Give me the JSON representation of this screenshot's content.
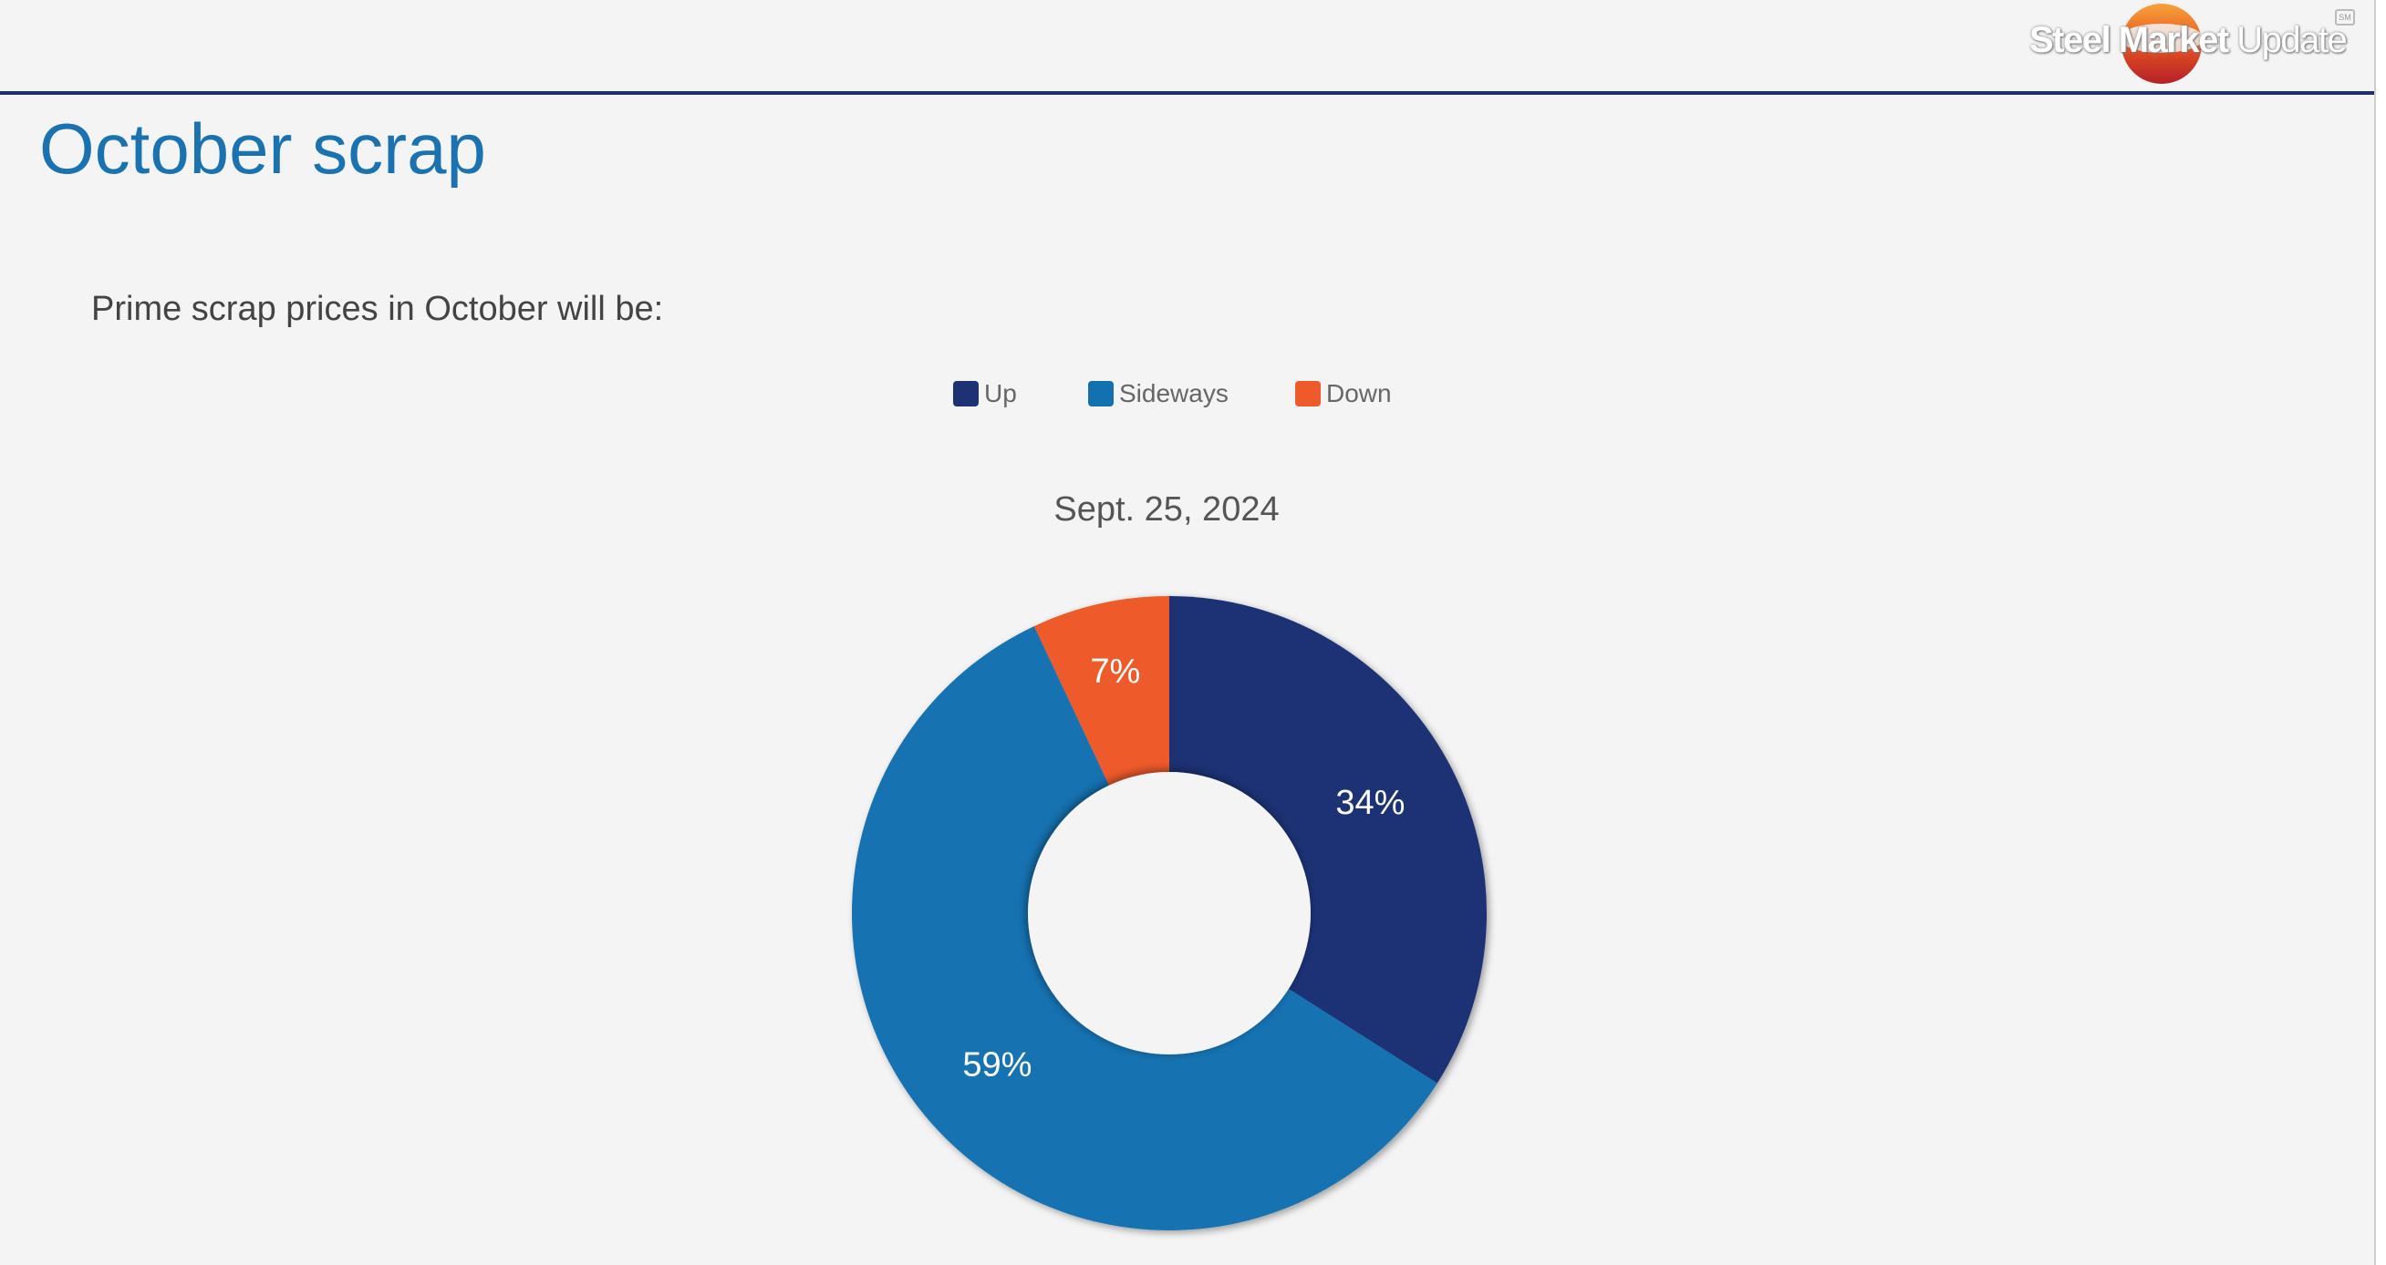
{
  "logo": {
    "text_bold": "Steel Market",
    "text_light": "Update",
    "mark": "SM"
  },
  "slide": {
    "title": "October scrap",
    "question": "Prime scrap prices in October will be:"
  },
  "chart_data": {
    "type": "pie",
    "subtype": "donut",
    "title": "Sept. 25, 2024",
    "legend_position": "top",
    "categories": [
      "Up",
      "Sideways",
      "Down"
    ],
    "values": [
      34,
      59,
      7
    ],
    "data_labels": [
      "34%",
      "59%",
      "7%"
    ],
    "colors": [
      "#1f3175",
      "#1272b1",
      "#ee5a2a"
    ],
    "start_angle": "12 o'clock",
    "direction": "clockwise"
  },
  "colors": {
    "background": "#f4f4f4",
    "title": "#1a72b0",
    "header_rule": "#1e2f6f",
    "logo_orange": "#e8551f",
    "logo_red": "#c62828"
  }
}
